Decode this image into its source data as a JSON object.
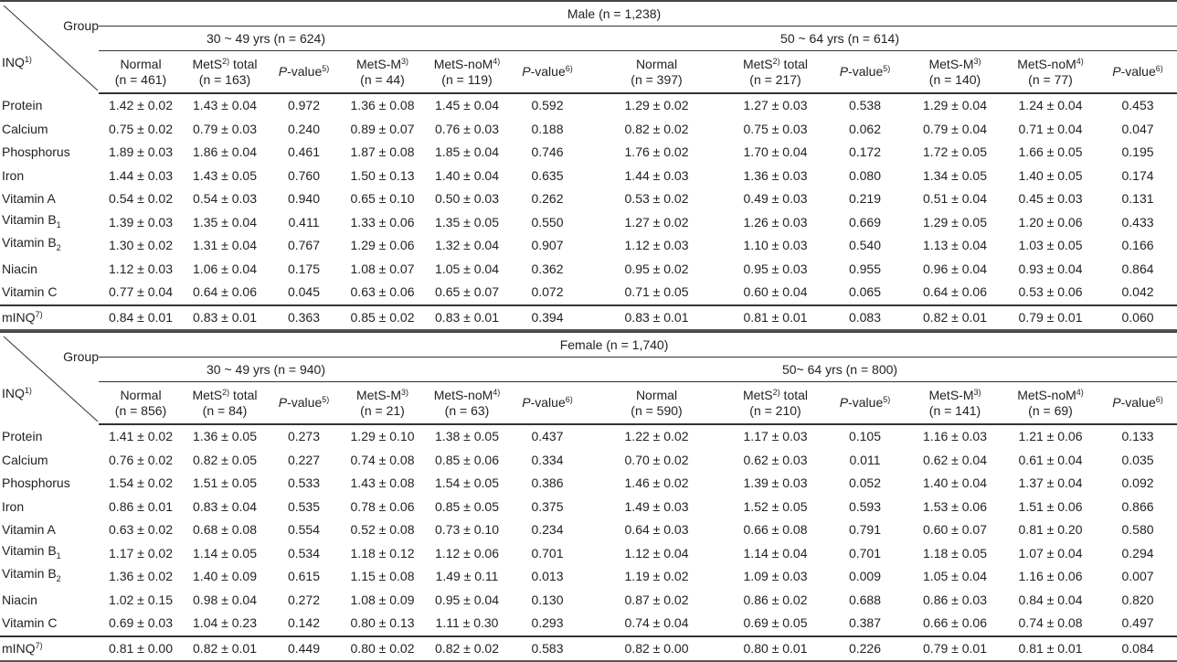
{
  "corner": {
    "group_label": "Group",
    "inq_label": "INQ",
    "inq_sup": "1)"
  },
  "column_headers": [
    {
      "name": "Normal",
      "sup": "",
      "suffix": ""
    },
    {
      "name": "MetS",
      "sup": "2)",
      "suffix": " total"
    },
    {
      "name": "P",
      "sup": "5)",
      "suffix": "-value",
      "pvalue": true
    },
    {
      "name": "MetS-M",
      "sup": "3)",
      "suffix": ""
    },
    {
      "name": "MetS-noM",
      "sup": "4)",
      "suffix": ""
    },
    {
      "name": "P",
      "sup": "6)",
      "suffix": "-value",
      "pvalue": true
    }
  ],
  "row_labels": [
    {
      "text": "Protein",
      "sub": ""
    },
    {
      "text": "Calcium",
      "sub": ""
    },
    {
      "text": "Phosphorus",
      "sub": ""
    },
    {
      "text": "Iron",
      "sub": ""
    },
    {
      "text": "Vitamin A",
      "sub": ""
    },
    {
      "text": "Vitamin B",
      "sub": "1"
    },
    {
      "text": "Vitamin B",
      "sub": "2"
    },
    {
      "text": "Niacin",
      "sub": ""
    },
    {
      "text": "Vitamin C",
      "sub": ""
    },
    {
      "text": "mINQ",
      "sup": "7)"
    }
  ],
  "sections": [
    {
      "title": "Male (n = 1,238)",
      "age_groups": [
        {
          "label": "30 ~ 49 yrs (n = 624)",
          "n": [
            "(n = 461)",
            "(n = 163)",
            "",
            "(n = 44)",
            "(n = 119)",
            ""
          ]
        },
        {
          "label": "50 ~ 64 yrs (n = 614)",
          "n": [
            "(n = 397)",
            "(n = 217)",
            "",
            "(n = 140)",
            "(n = 77)",
            ""
          ]
        }
      ],
      "rows": [
        [
          "1.42 ± 0.02",
          "1.43 ± 0.04",
          "0.972",
          "1.36 ± 0.08",
          "1.45 ± 0.04",
          "0.592",
          "1.29 ± 0.02",
          "1.27 ± 0.03",
          "0.538",
          "1.29 ± 0.04",
          "1.24 ± 0.04",
          "0.453"
        ],
        [
          "0.75 ± 0.02",
          "0.79 ± 0.03",
          "0.240",
          "0.89 ± 0.07",
          "0.76 ± 0.03",
          "0.188",
          "0.82 ± 0.02",
          "0.75 ± 0.03",
          "0.062",
          "0.79 ± 0.04",
          "0.71 ± 0.04",
          "0.047"
        ],
        [
          "1.89 ± 0.03",
          "1.86 ± 0.04",
          "0.461",
          "1.87 ± 0.08",
          "1.85 ± 0.04",
          "0.746",
          "1.76 ± 0.02",
          "1.70 ± 0.04",
          "0.172",
          "1.72 ± 0.05",
          "1.66 ± 0.05",
          "0.195"
        ],
        [
          "1.44 ± 0.03",
          "1.43 ± 0.05",
          "0.760",
          "1.50 ± 0.13",
          "1.40 ± 0.04",
          "0.635",
          "1.44 ± 0.03",
          "1.36 ± 0.03",
          "0.080",
          "1.34 ± 0.05",
          "1.40 ± 0.05",
          "0.174"
        ],
        [
          "0.54 ± 0.02",
          "0.54 ± 0.03",
          "0.940",
          "0.65 ± 0.10",
          "0.50 ± 0.03",
          "0.262",
          "0.53 ± 0.02",
          "0.49 ± 0.03",
          "0.219",
          "0.51 ± 0.04",
          "0.45 ± 0.03",
          "0.131"
        ],
        [
          "1.39 ± 0.03",
          "1.35 ± 0.04",
          "0.411",
          "1.33 ± 0.06",
          "1.35 ± 0.05",
          "0.550",
          "1.27 ± 0.02",
          "1.26 ± 0.03",
          "0.669",
          "1.29 ± 0.05",
          "1.20 ± 0.06",
          "0.433"
        ],
        [
          "1.30 ± 0.02",
          "1.31 ± 0.04",
          "0.767",
          "1.29 ± 0.06",
          "1.32 ± 0.04",
          "0.907",
          "1.12 ± 0.03",
          "1.10 ± 0.03",
          "0.540",
          "1.13 ± 0.04",
          "1.03 ± 0.05",
          "0.166"
        ],
        [
          "1.12 ± 0.03",
          "1.06 ± 0.04",
          "0.175",
          "1.08 ± 0.07",
          "1.05 ± 0.04",
          "0.362",
          "0.95 ± 0.02",
          "0.95 ± 0.03",
          "0.955",
          "0.96 ± 0.04",
          "0.93 ± 0.04",
          "0.864"
        ],
        [
          "0.77 ± 0.04",
          "0.64 ± 0.06",
          "0.045",
          "0.63 ± 0.06",
          "0.65 ± 0.07",
          "0.072",
          "0.71 ± 0.05",
          "0.60 ± 0.04",
          "0.065",
          "0.64 ± 0.06",
          "0.53 ± 0.06",
          "0.042"
        ],
        [
          "0.84 ± 0.01",
          "0.83 ± 0.01",
          "0.363",
          "0.85 ± 0.02",
          "0.83 ± 0.01",
          "0.394",
          "0.83 ± 0.01",
          "0.81 ± 0.01",
          "0.083",
          "0.82 ± 0.01",
          "0.79 ± 0.01",
          "0.060"
        ]
      ]
    },
    {
      "title": "Female (n = 1,740)",
      "age_groups": [
        {
          "label": "30 ~ 49 yrs (n = 940)",
          "n": [
            "(n = 856)",
            "(n = 84)",
            "",
            "(n = 21)",
            "(n = 63)",
            ""
          ]
        },
        {
          "label": "50~ 64 yrs (n = 800)",
          "n": [
            "(n = 590)",
            "(n = 210)",
            "",
            "(n = 141)",
            "(n = 69)",
            ""
          ]
        }
      ],
      "rows": [
        [
          "1.41 ± 0.02",
          "1.36 ± 0.05",
          "0.273",
          "1.29 ± 0.10",
          "1.38 ± 0.05",
          "0.437",
          "1.22 ± 0.02",
          "1.17 ± 0.03",
          "0.105",
          "1.16 ± 0.03",
          "1.21 ± 0.06",
          "0.133"
        ],
        [
          "0.76 ± 0.02",
          "0.82 ± 0.05",
          "0.227",
          "0.74 ± 0.08",
          "0.85 ± 0.06",
          "0.334",
          "0.70 ± 0.02",
          "0.62 ± 0.03",
          "0.011",
          "0.62 ± 0.04",
          "0.61 ± 0.04",
          "0.035"
        ],
        [
          "1.54 ± 0.02",
          "1.51 ± 0.05",
          "0.533",
          "1.43 ± 0.08",
          "1.54 ± 0.05",
          "0.386",
          "1.46 ± 0.02",
          "1.39 ± 0.03",
          "0.052",
          "1.40 ± 0.04",
          "1.37 ± 0.04",
          "0.092"
        ],
        [
          "0.86 ± 0.01",
          "0.83 ± 0.04",
          "0.535",
          "0.78 ± 0.06",
          "0.85 ± 0.05",
          "0.375",
          "1.49 ± 0.03",
          "1.52 ± 0.05",
          "0.593",
          "1.53 ± 0.06",
          "1.51 ± 0.06",
          "0.866"
        ],
        [
          "0.63 ± 0.02",
          "0.68 ± 0.08",
          "0.554",
          "0.52 ± 0.08",
          "0.73 ± 0.10",
          "0.234",
          "0.64 ± 0.03",
          "0.66 ± 0.08",
          "0.791",
          "0.60 ± 0.07",
          "0.81 ± 0.20",
          "0.580"
        ],
        [
          "1.17 ± 0.02",
          "1.14 ± 0.05",
          "0.534",
          "1.18 ± 0.12",
          "1.12 ± 0.06",
          "0.701",
          "1.12 ± 0.04",
          "1.14 ± 0.04",
          "0.701",
          "1.18 ± 0.05",
          "1.07 ± 0.04",
          "0.294"
        ],
        [
          "1.36 ± 0.02",
          "1.40 ± 0.09",
          "0.615",
          "1.15 ± 0.08",
          "1.49 ± 0.11",
          "0.013",
          "1.19 ± 0.02",
          "1.09 ± 0.03",
          "0.009",
          "1.05 ± 0.04",
          "1.16 ± 0.06",
          "0.007"
        ],
        [
          "1.02 ± 0.15",
          "0.98 ± 0.04",
          "0.272",
          "1.08 ± 0.09",
          "0.95 ± 0.04",
          "0.130",
          "0.87 ± 0.02",
          "0.86 ± 0.02",
          "0.688",
          "0.86 ± 0.03",
          "0.84 ± 0.04",
          "0.820"
        ],
        [
          "0.69 ± 0.03",
          "1.04 ± 0.23",
          "0.142",
          "0.80 ± 0.13",
          "1.11 ± 0.30",
          "0.293",
          "0.74 ± 0.04",
          "0.69 ± 0.05",
          "0.387",
          "0.66 ± 0.06",
          "0.74 ± 0.08",
          "0.497"
        ],
        [
          "0.81 ± 0.00",
          "0.82 ± 0.01",
          "0.449",
          "0.80 ± 0.02",
          "0.82 ± 0.02",
          "0.583",
          "0.82 ± 0.00",
          "0.80 ± 0.01",
          "0.226",
          "0.79 ± 0.01",
          "0.81 ± 0.01",
          "0.084"
        ]
      ]
    }
  ]
}
